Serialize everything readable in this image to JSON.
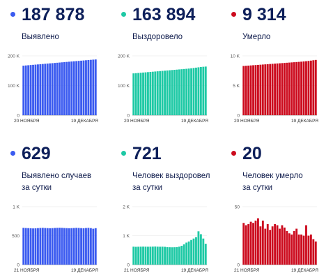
{
  "panels": [
    {
      "value": "187 878",
      "label_lines": [
        "Выявлено"
      ],
      "color": "#3b5bf0",
      "chart_data": {
        "type": "bar",
        "ylim": [
          0,
          200000
        ],
        "y_ticks": [
          0,
          100000,
          200000
        ],
        "y_tick_labels": [
          "0",
          "100 K",
          "200 K"
        ],
        "x_tick_labels": [
          "20 НОЯБРЯ",
          "19 ДЕКАБРЯ"
        ],
        "values": [
          167000,
          167700,
          168400,
          169100,
          169800,
          170500,
          171200,
          171900,
          172600,
          173300,
          174000,
          174700,
          175400,
          176100,
          176800,
          177500,
          178200,
          178900,
          179600,
          180300,
          181000,
          181700,
          182400,
          183100,
          183800,
          184500,
          185200,
          185900,
          186600,
          187300,
          187878
        ]
      }
    },
    {
      "value": "163 894",
      "label_lines": [
        "Выздоровело"
      ],
      "color": "#1ec9a5",
      "chart_data": {
        "type": "bar",
        "ylim": [
          0,
          200000
        ],
        "y_ticks": [
          0,
          100000,
          200000
        ],
        "y_tick_labels": [
          "0",
          "100 K",
          "200 K"
        ],
        "x_tick_labels": [
          "20 НОЯБРЯ",
          "19 ДЕКАБРЯ"
        ],
        "values": [
          141000,
          141700,
          142400,
          143100,
          143800,
          144500,
          145200,
          145900,
          146600,
          147300,
          148000,
          148700,
          149400,
          150100,
          150800,
          151500,
          152200,
          152900,
          153600,
          154300,
          155000,
          155700,
          156400,
          157200,
          158100,
          159200,
          160300,
          161400,
          162400,
          163200,
          163894
        ]
      }
    },
    {
      "value": "9 314",
      "label_lines": [
        "Умерло"
      ],
      "color": "#cc0b1e",
      "chart_data": {
        "type": "bar",
        "ylim": [
          0,
          10000
        ],
        "y_ticks": [
          0,
          5000,
          10000
        ],
        "y_tick_labels": [
          "0",
          "5 K",
          "10 K"
        ],
        "x_tick_labels": [
          "20 НОЯБРЯ",
          "19 ДЕКАБРЯ"
        ],
        "values": [
          8300,
          8330,
          8360,
          8390,
          8420,
          8450,
          8480,
          8510,
          8540,
          8570,
          8600,
          8630,
          8660,
          8690,
          8720,
          8750,
          8780,
          8810,
          8840,
          8870,
          8900,
          8930,
          8960,
          8990,
          9020,
          9060,
          9100,
          9150,
          9200,
          9260,
          9314
        ]
      }
    },
    {
      "value": "629",
      "label_lines": [
        "Выявлено случаев",
        "за сутки"
      ],
      "color": "#3b5bf0",
      "chart_data": {
        "type": "bar",
        "ylim": [
          0,
          1000
        ],
        "y_ticks": [
          0,
          500,
          1000
        ],
        "y_tick_labels": [
          "0",
          "500",
          "1 K"
        ],
        "x_tick_labels": [
          "21 НОЯБРЯ",
          "19 ДЕКАБРЯ"
        ],
        "values": [
          635,
          632,
          630,
          628,
          625,
          627,
          630,
          633,
          635,
          632,
          630,
          628,
          630,
          633,
          635,
          637,
          635,
          632,
          630,
          628,
          630,
          632,
          635,
          633,
          630,
          628,
          632,
          635,
          630,
          620,
          629
        ]
      }
    },
    {
      "value": "721",
      "label_lines": [
        "Человек выздоровел",
        "за сутки"
      ],
      "color": "#1ec9a5",
      "chart_data": {
        "type": "bar",
        "ylim": [
          0,
          2000
        ],
        "y_ticks": [
          0,
          1000,
          2000
        ],
        "y_tick_labels": [
          "0",
          "1 K",
          "2 K"
        ],
        "x_tick_labels": [
          "21 НОЯБРЯ",
          "19 ДЕКАБРЯ"
        ],
        "values": [
          620,
          615,
          618,
          620,
          622,
          620,
          618,
          620,
          622,
          625,
          620,
          618,
          620,
          615,
          605,
          600,
          598,
          600,
          605,
          620,
          650,
          700,
          760,
          800,
          850,
          900,
          950,
          1150,
          1050,
          900,
          721
        ]
      }
    },
    {
      "value": "20",
      "label_lines": [
        "Человек умерло",
        "за сутки"
      ],
      "color": "#cc0b1e",
      "chart_data": {
        "type": "bar",
        "ylim": [
          0,
          50
        ],
        "y_ticks": [
          0,
          50
        ],
        "y_tick_labels": [
          "0",
          "50"
        ],
        "x_tick_labels": [
          "21 НОЯБРЯ",
          "19 ДЕКАБРЯ"
        ],
        "values": [
          36,
          34,
          35,
          37,
          36,
          38,
          40,
          33,
          38,
          31,
          35,
          30,
          33,
          35,
          34,
          31,
          34,
          32,
          29,
          27,
          26,
          29,
          31,
          26,
          26,
          25,
          34,
          25,
          26,
          22,
          20
        ]
      }
    }
  ]
}
